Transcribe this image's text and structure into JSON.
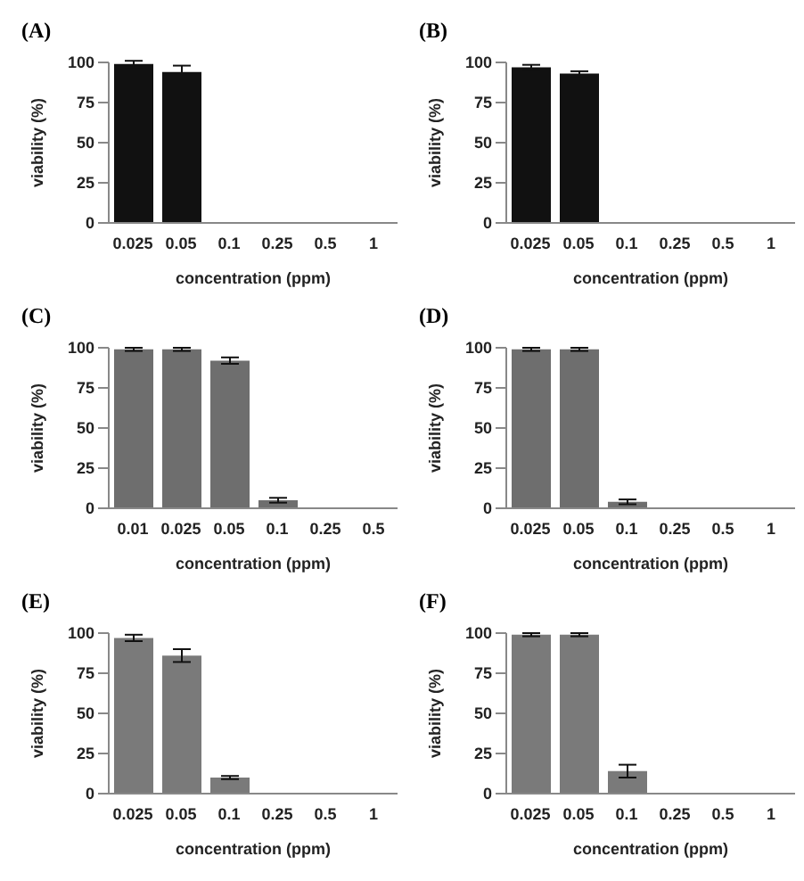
{
  "chart_data": [
    {
      "type": "bar",
      "title": "(A)",
      "xlabel": "concentration (ppm)",
      "ylabel": "viability (%)",
      "categories": [
        "0.025",
        "0.05",
        "0.1",
        "0.25",
        "0.5",
        "1"
      ],
      "values": [
        99,
        94,
        0,
        0,
        0,
        0
      ],
      "errors": [
        2,
        4,
        null,
        null,
        null,
        null
      ],
      "color": "#111111",
      "ylim": [
        0,
        100
      ],
      "yticks": [
        0,
        25,
        50,
        75,
        100
      ],
      "grid": false
    },
    {
      "type": "bar",
      "title": "(B)",
      "xlabel": "concentration (ppm)",
      "ylabel": "viability (%)",
      "categories": [
        "0.025",
        "0.05",
        "0.1",
        "0.25",
        "0.5",
        "1"
      ],
      "values": [
        97,
        93,
        0,
        0,
        0,
        0
      ],
      "errors": [
        1.5,
        1.5,
        null,
        null,
        null,
        null
      ],
      "color": "#111111",
      "ylim": [
        0,
        100
      ],
      "yticks": [
        0,
        25,
        50,
        75,
        100
      ],
      "grid": false
    },
    {
      "type": "bar",
      "title": "(C)",
      "xlabel": "concentration (ppm)",
      "ylabel": "viability (%)",
      "categories": [
        "0.01",
        "0.025",
        "0.05",
        "0.1",
        "0.25",
        "0.5"
      ],
      "values": [
        99,
        99,
        92,
        5,
        0,
        0
      ],
      "errors": [
        1,
        1,
        2,
        1.5,
        null,
        null
      ],
      "color": "#6e6e6e",
      "ylim": [
        0,
        100
      ],
      "yticks": [
        0,
        25,
        50,
        75,
        100
      ],
      "grid": false
    },
    {
      "type": "bar",
      "title": "(D)",
      "xlabel": "concentration (ppm)",
      "ylabel": "viability (%)",
      "categories": [
        "0.025",
        "0.05",
        "0.1",
        "0.25",
        "0.5",
        "1"
      ],
      "values": [
        99,
        99,
        4,
        0,
        0,
        0
      ],
      "errors": [
        1,
        1,
        1.5,
        null,
        null,
        null
      ],
      "color": "#6e6e6e",
      "ylim": [
        0,
        100
      ],
      "yticks": [
        0,
        25,
        50,
        75,
        100
      ],
      "grid": false
    },
    {
      "type": "bar",
      "title": "(E)",
      "xlabel": "concentration (ppm)",
      "ylabel": "viability (%)",
      "categories": [
        "0.025",
        "0.05",
        "0.1",
        "0.25",
        "0.5",
        "1"
      ],
      "values": [
        97,
        86,
        10,
        0,
        0,
        0
      ],
      "errors": [
        2,
        4,
        1,
        null,
        null,
        null
      ],
      "color": "#7a7a7a",
      "ylim": [
        0,
        100
      ],
      "yticks": [
        0,
        25,
        50,
        75,
        100
      ],
      "grid": false
    },
    {
      "type": "bar",
      "title": "(F)",
      "xlabel": "concentration (ppm)",
      "ylabel": "viability (%)",
      "categories": [
        "0.025",
        "0.05",
        "0.1",
        "0.25",
        "0.5",
        "1"
      ],
      "values": [
        99,
        99,
        14,
        0,
        0,
        0
      ],
      "errors": [
        1,
        1,
        4,
        null,
        null,
        null
      ],
      "color": "#7a7a7a",
      "ylim": [
        0,
        100
      ],
      "yticks": [
        0,
        25,
        50,
        75,
        100
      ],
      "grid": false
    }
  ]
}
